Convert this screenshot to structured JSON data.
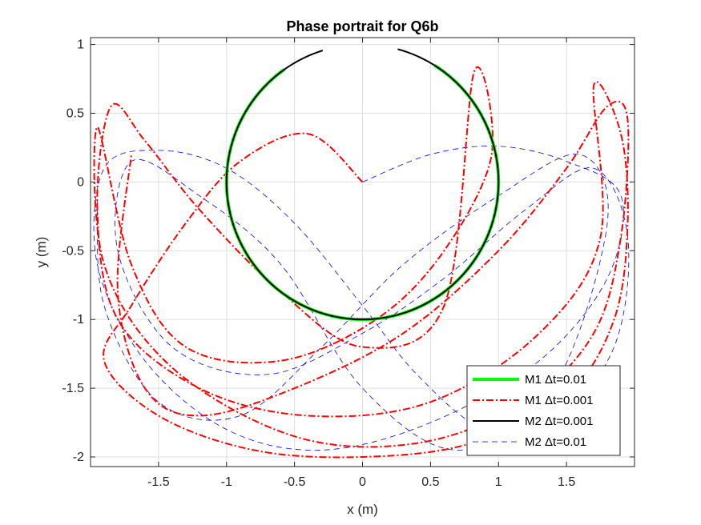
{
  "chart_data": {
    "type": "line",
    "title": "Phase portrait for Q6b",
    "xlabel": "x (m)",
    "ylabel": "y (m)",
    "xlim": [
      -2,
      2
    ],
    "ylim": [
      -2.07,
      1.05
    ],
    "xticks": [
      -1.5,
      -1,
      -0.5,
      0,
      0.5,
      1,
      1.5
    ],
    "yticks": [
      -2,
      -1.5,
      -1,
      -0.5,
      0,
      0.5,
      1
    ],
    "xtick_labels": [
      "-1.5",
      "-1",
      "-0.5",
      "0",
      "0.5",
      "1",
      "1.5"
    ],
    "ytick_labels": [
      "-2",
      "-1.5",
      "-1",
      "-0.5",
      "0",
      "0.5",
      "1"
    ],
    "grid": true,
    "legend_position": "bottom-right",
    "series": [
      {
        "name": "M1 Δt=0.01",
        "color": "#00ff00",
        "style": "solid",
        "description_kind": "circle-arc",
        "center": [
          0,
          0
        ],
        "radius": 1,
        "arc_gap_top_deg": [
          58,
          125
        ],
        "points": [
          [
            0.25,
            0.97
          ],
          [
            0.5,
            0.866
          ],
          [
            0.707,
            0.707
          ],
          [
            0.866,
            0.5
          ],
          [
            0.97,
            0.25
          ],
          [
            1,
            0
          ],
          [
            0.97,
            -0.25
          ],
          [
            0.866,
            -0.5
          ],
          [
            0.707,
            -0.707
          ],
          [
            0.5,
            -0.866
          ],
          [
            0.25,
            -0.97
          ],
          [
            0,
            -1
          ],
          [
            -0.25,
            -0.97
          ],
          [
            -0.5,
            -0.866
          ],
          [
            -0.707,
            -0.707
          ],
          [
            -0.866,
            -0.5
          ],
          [
            -0.97,
            -0.25
          ],
          [
            -1,
            0
          ],
          [
            -0.97,
            0.25
          ],
          [
            -0.866,
            0.5
          ],
          [
            -0.76,
            0.65
          ]
        ]
      },
      {
        "name": "M1 Δt=0.001",
        "color": "#ff0000",
        "style": "dashdot",
        "points": [
          [
            0,
            0
          ],
          [
            -0.4,
            0.35
          ],
          [
            -0.9,
            0.15
          ],
          [
            -1.3,
            -0.3
          ],
          [
            -1.7,
            -0.9
          ],
          [
            -1.9,
            -1.3
          ],
          [
            -1.5,
            -1.7
          ],
          [
            -0.8,
            -1.95
          ],
          [
            0,
            -2
          ],
          [
            0.8,
            -1.9
          ],
          [
            1.5,
            -1.55
          ],
          [
            1.85,
            -1.0
          ],
          [
            1.95,
            -0.3
          ],
          [
            1.9,
            0.35
          ],
          [
            1.7,
            0.7
          ],
          [
            1.75,
            -0.4
          ],
          [
            1.3,
            -1.1
          ],
          [
            0.5,
            -1.6
          ],
          [
            -0.4,
            -1.7
          ],
          [
            -1.2,
            -1.5
          ],
          [
            -1.8,
            -1.0
          ],
          [
            -1.95,
            -0.2
          ],
          [
            -1.85,
            0.55
          ],
          [
            -1.6,
            0.3
          ],
          [
            -1.2,
            -0.2
          ],
          [
            -0.6,
            -0.8
          ],
          [
            0,
            -1.2
          ],
          [
            0.6,
            -0.9
          ],
          [
            0.82,
            0.8
          ],
          [
            0.95,
            0.2
          ],
          [
            0.6,
            -0.5
          ],
          [
            0.1,
            -1.0
          ],
          [
            -0.6,
            -1.3
          ],
          [
            -1.3,
            -1.2
          ],
          [
            -1.7,
            -0.6
          ],
          [
            -1.95,
            0.4
          ],
          [
            -1.9,
            -0.6
          ],
          [
            -1.4,
            -1.35
          ],
          [
            -0.5,
            -1.85
          ],
          [
            0.4,
            -1.9
          ],
          [
            1.2,
            -1.6
          ],
          [
            1.7,
            -1.1
          ],
          [
            1.9,
            -0.4
          ],
          [
            1.95,
            0.45
          ],
          [
            1.8,
            0.55
          ],
          [
            1.5,
            0.1
          ],
          [
            1.0,
            -0.5
          ],
          [
            0.3,
            -1.1
          ],
          [
            -0.5,
            -1.5
          ],
          [
            -1.2,
            -1.7
          ],
          [
            -1.6,
            -1.5
          ],
          [
            -1.8,
            -0.8
          ],
          [
            -1.7,
            0.2
          ]
        ]
      },
      {
        "name": "M2 Δt=0.001",
        "color": "#000000",
        "style": "solid",
        "description_kind": "circle-arc",
        "center": [
          0,
          0
        ],
        "radius": 1,
        "arc_gap_top_deg": [
          75,
          107
        ],
        "points": [
          [
            0.24,
            0.97
          ],
          [
            0.5,
            0.866
          ],
          [
            0.707,
            0.707
          ],
          [
            0.866,
            0.5
          ],
          [
            0.97,
            0.25
          ],
          [
            1,
            0
          ],
          [
            0.97,
            -0.25
          ],
          [
            0.866,
            -0.5
          ],
          [
            0.707,
            -0.707
          ],
          [
            0.5,
            -0.866
          ],
          [
            0.25,
            -0.97
          ],
          [
            0,
            -1
          ],
          [
            -0.25,
            -0.97
          ],
          [
            -0.5,
            -0.866
          ],
          [
            -0.707,
            -0.707
          ],
          [
            -0.866,
            -0.5
          ],
          [
            -0.97,
            -0.25
          ],
          [
            -1,
            0
          ],
          [
            -0.97,
            0.25
          ],
          [
            -0.866,
            0.5
          ],
          [
            -0.707,
            0.707
          ],
          [
            -0.5,
            0.866
          ],
          [
            -0.29,
            0.956
          ]
        ]
      },
      {
        "name": "M2 Δt=0.01",
        "color": "#0000ff",
        "style": "dashed",
        "points": [
          [
            0,
            0
          ],
          [
            0.5,
            0.2
          ],
          [
            1.0,
            0.26
          ],
          [
            1.5,
            0.15
          ],
          [
            1.9,
            -0.1
          ],
          [
            1.8,
            -0.7
          ],
          [
            1.3,
            -1.3
          ],
          [
            0.5,
            -1.75
          ],
          [
            -0.3,
            -1.95
          ],
          [
            -1.0,
            -1.8
          ],
          [
            -1.6,
            -1.3
          ],
          [
            -1.95,
            -0.6
          ],
          [
            -1.9,
            0.1
          ],
          [
            -1.5,
            0.23
          ],
          [
            -1.0,
            0.1
          ],
          [
            -0.5,
            -0.3
          ],
          [
            0,
            -0.9
          ],
          [
            0.4,
            -1.4
          ],
          [
            0.9,
            -1.8
          ],
          [
            1.4,
            -1.75
          ],
          [
            1.85,
            -1.2
          ],
          [
            1.95,
            -0.4
          ],
          [
            1.7,
            0.1
          ],
          [
            1.2,
            -0.2
          ],
          [
            0.6,
            -0.7
          ],
          [
            0,
            -1.1
          ],
          [
            -0.7,
            -1.4
          ],
          [
            -1.4,
            -1.2
          ],
          [
            -1.8,
            -0.5
          ],
          [
            -1.7,
            0.15
          ],
          [
            -1.2,
            -0.1
          ],
          [
            -0.6,
            -0.6
          ],
          [
            0,
            -1.5
          ],
          [
            0.7,
            -1.95
          ],
          [
            1.4,
            -1.5
          ],
          [
            1.8,
            -0.3
          ],
          [
            1.6,
            0.2
          ],
          [
            1.0,
            -0.1
          ],
          [
            0.3,
            -0.6
          ],
          [
            -0.3,
            -1.2
          ],
          [
            -0.9,
            -1.7
          ],
          [
            -1.5,
            -1.6
          ],
          [
            -1.9,
            -0.9
          ],
          [
            -1.95,
            -0.1
          ]
        ]
      }
    ]
  }
}
